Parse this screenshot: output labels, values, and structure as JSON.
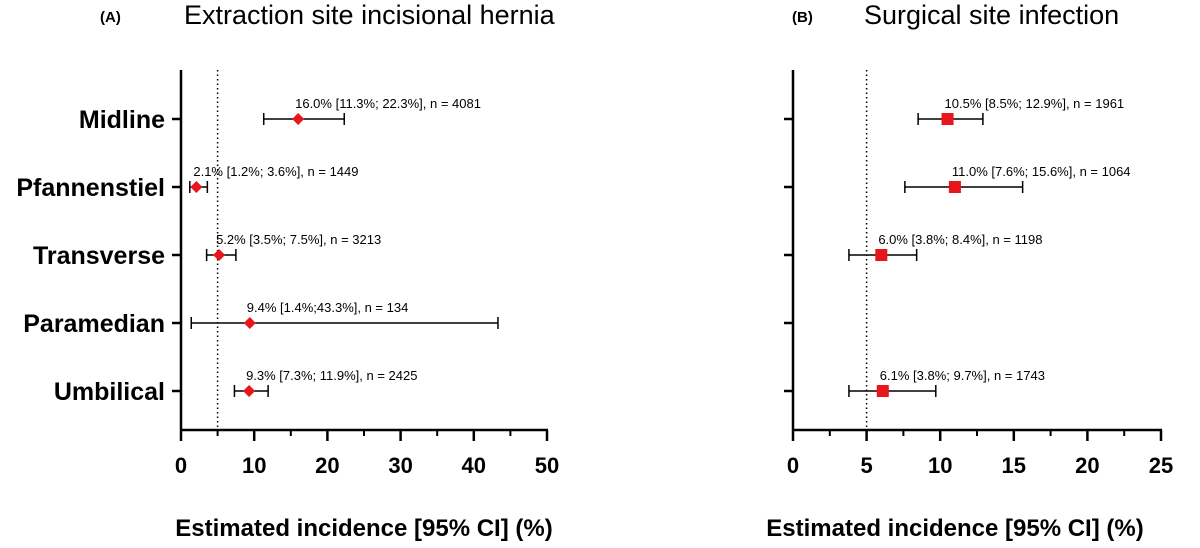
{
  "chart_data": [
    {
      "type": "forest",
      "panel": "(A)",
      "title": "Extraction site  incisional hernia",
      "xlabel": "Estimated incidence [95% CI] (%)",
      "xlim": [
        0,
        50
      ],
      "xticks": [
        0,
        10,
        20,
        30,
        40,
        50
      ],
      "reference_line": 5,
      "marker": "diamond",
      "color": "#e8151b",
      "categories": [
        "Midline",
        "Pfannenstiel",
        "Transverse",
        "Paramedian",
        "Umbilical"
      ],
      "points": [
        {
          "category": "Midline",
          "estimate": 16.0,
          "ci_low": 11.3,
          "ci_high": 22.3,
          "label": "16.0% [11.3%; 22.3%], n = 4081"
        },
        {
          "category": "Pfannenstiel",
          "estimate": 2.1,
          "ci_low": 1.2,
          "ci_high": 3.6,
          "label": "2.1% [1.2%; 3.6%], n = 1449"
        },
        {
          "category": "Transverse",
          "estimate": 5.2,
          "ci_low": 3.5,
          "ci_high": 7.5,
          "label": "5.2% [3.5%; 7.5%], n = 3213"
        },
        {
          "category": "Paramedian",
          "estimate": 9.4,
          "ci_low": 1.4,
          "ci_high": 43.3,
          "label": "9.4% [1.4%;43.3%], n = 134"
        },
        {
          "category": "Umbilical",
          "estimate": 9.3,
          "ci_low": 7.3,
          "ci_high": 11.9,
          "label": "9.3% [7.3%; 11.9%], n = 2425"
        }
      ]
    },
    {
      "type": "forest",
      "panel": "(B)",
      "title": "Surgical site infection",
      "xlabel": "Estimated incidence [95% CI] (%)",
      "xlim": [
        0,
        25
      ],
      "xticks": [
        0,
        5,
        10,
        15,
        20,
        25
      ],
      "reference_line": 5,
      "marker": "square",
      "color": "#e8151b",
      "categories": [
        "Midline",
        "Pfannenstiel",
        "Transverse",
        "Paramedian",
        "Umbilical"
      ],
      "points": [
        {
          "category": "Midline",
          "estimate": 10.5,
          "ci_low": 8.5,
          "ci_high": 12.9,
          "label": "10.5% [8.5%; 12.9%], n = 1961"
        },
        {
          "category": "Pfannenstiel",
          "estimate": 11.0,
          "ci_low": 7.6,
          "ci_high": 15.6,
          "label": "11.0% [7.6%; 15.6%], n = 1064"
        },
        {
          "category": "Transverse",
          "estimate": 6.0,
          "ci_low": 3.8,
          "ci_high": 8.4,
          "label": "6.0% [3.8%; 8.4%], n = 1198"
        },
        {
          "category": "Umbilical",
          "estimate": 6.1,
          "ci_low": 3.8,
          "ci_high": 9.7,
          "label": "6.1% [3.8%; 9.7%], n = 1743"
        }
      ]
    }
  ]
}
